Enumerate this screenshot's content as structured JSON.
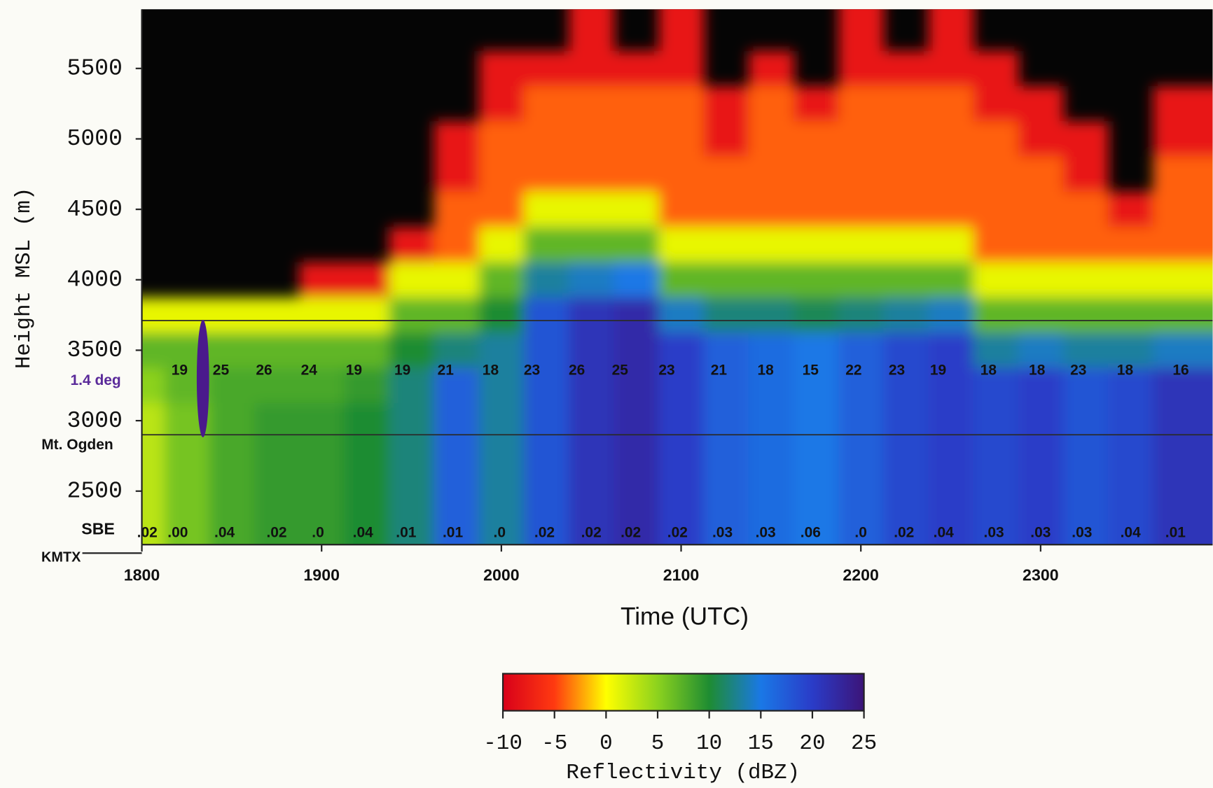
{
  "chart_data": {
    "type": "heatmap",
    "xlabel": "Time (UTC)",
    "ylabel": "Height MSL (m)",
    "x": [
      18,
      18.25,
      18.5,
      18.75,
      19,
      19.25,
      19.5,
      19.75,
      20,
      20.25,
      20.5,
      20.75,
      21,
      21.25,
      21.5,
      21.75,
      22,
      22.25,
      22.5,
      22.75,
      23,
      23.25,
      23.5,
      23.75
    ],
    "y": [
      5750,
      5500,
      5250,
      5000,
      4750,
      4500,
      4250,
      4000,
      3750,
      3500,
      3250,
      3000,
      2750,
      2500,
      2250
    ],
    "values": [
      [
        null,
        null,
        null,
        null,
        null,
        null,
        null,
        null,
        1,
        7,
        5,
        3,
        3,
        3,
        3
      ],
      [
        null,
        null,
        null,
        null,
        null,
        null,
        null,
        null,
        1,
        7,
        7,
        6,
        6,
        6,
        6
      ],
      [
        null,
        null,
        null,
        null,
        null,
        null,
        null,
        null,
        1,
        7,
        8,
        8,
        8,
        8,
        8
      ],
      [
        null,
        null,
        null,
        null,
        null,
        null,
        null,
        null,
        1,
        7,
        8,
        9,
        9,
        9,
        9
      ],
      [
        null,
        null,
        null,
        null,
        null,
        null,
        null,
        -8,
        1,
        7,
        8,
        9,
        9,
        9,
        9
      ],
      [
        null,
        null,
        null,
        null,
        null,
        null,
        null,
        -8,
        1,
        7,
        9,
        10,
        10,
        10,
        10
      ],
      [
        null,
        null,
        null,
        null,
        null,
        null,
        -8,
        1,
        7,
        10,
        12,
        12,
        12,
        12,
        12
      ],
      [
        null,
        null,
        null,
        -8,
        -8,
        -4,
        -4,
        1,
        7,
        12,
        17,
        17,
        17,
        17,
        17
      ],
      [
        null,
        -8,
        -8,
        -4,
        -4,
        -4,
        1,
        7,
        10,
        13,
        13,
        13,
        13,
        13,
        13
      ],
      [
        null,
        -8,
        -4,
        -4,
        -4,
        1,
        7,
        13,
        18,
        18,
        18,
        18,
        18,
        18,
        18
      ],
      [
        -8,
        -8,
        -4,
        -4,
        -4,
        1,
        7,
        14,
        21,
        21,
        21,
        21,
        21,
        21,
        21
      ],
      [
        null,
        -8,
        -4,
        -4,
        -4,
        1,
        7,
        15,
        22,
        22,
        22,
        22,
        22,
        22,
        22
      ],
      [
        -8,
        -8,
        -4,
        -4,
        -4,
        -4,
        1,
        7,
        14,
        20,
        20,
        20,
        20,
        20,
        20
      ],
      [
        null,
        null,
        -8,
        -8,
        -4,
        -4,
        1,
        7,
        12,
        17,
        17,
        17,
        17,
        17,
        17
      ],
      [
        null,
        -8,
        -4,
        -4,
        -4,
        -4,
        1,
        7,
        12,
        16,
        16,
        16,
        16,
        16,
        16
      ],
      [
        null,
        null,
        -8,
        -4,
        -4,
        -4,
        1,
        7,
        11,
        15,
        15,
        15,
        15,
        15,
        15
      ],
      [
        -8,
        -8,
        -4,
        -4,
        -4,
        -4,
        1,
        7,
        12,
        17,
        17,
        17,
        17,
        17,
        17
      ],
      [
        null,
        -8,
        -4,
        -4,
        -4,
        -4,
        1,
        7,
        13,
        19,
        19,
        19,
        19,
        19,
        19
      ],
      [
        -8,
        -8,
        -4,
        -4,
        -4,
        -4,
        1,
        7,
        14,
        20,
        20,
        20,
        20,
        20,
        20
      ],
      [
        null,
        -8,
        -8,
        -4,
        -4,
        -4,
        -4,
        1,
        7,
        13,
        19,
        19,
        19,
        19,
        19
      ],
      [
        null,
        null,
        -8,
        -8,
        -4,
        -4,
        -4,
        1,
        7,
        14,
        20,
        20,
        20,
        20,
        20
      ],
      [
        null,
        null,
        null,
        -8,
        -8,
        -4,
        -4,
        1,
        7,
        13,
        18,
        18,
        18,
        18,
        18
      ],
      [
        null,
        null,
        null,
        null,
        null,
        -8,
        -4,
        1,
        7,
        13,
        19,
        19,
        19,
        19,
        19
      ],
      [
        null,
        null,
        -8,
        -8,
        -4,
        -4,
        -4,
        1,
        7,
        14,
        21,
        21,
        21,
        21,
        21
      ]
    ],
    "xlim": [
      18,
      23.957
    ],
    "ylim": [
      2120,
      5920
    ],
    "xticks": [
      {
        "value": 18,
        "label": "1800"
      },
      {
        "value": 19,
        "label": "1900"
      },
      {
        "value": 20,
        "label": "2000"
      },
      {
        "value": 21,
        "label": "2100"
      },
      {
        "value": 22,
        "label": "2200"
      },
      {
        "value": 23,
        "label": "2300"
      }
    ],
    "yticks": [
      2500,
      3000,
      3500,
      4000,
      4500,
      5000,
      5500
    ],
    "colorbar": {
      "label": "Reflectivity (dBZ)",
      "ticks": [
        -10,
        -5,
        0,
        5,
        10,
        15,
        20,
        25
      ],
      "colors": [
        "#d8001a",
        "#ff3a10",
        "#ffff00",
        "#8cd21e",
        "#1e8c32",
        "#1a78e6",
        "#2a3cc8",
        "#3c1478"
      ]
    },
    "reference_lines": [
      3710,
      {
        "value": 2900,
        "label": "Mt. Ogden"
      }
    ],
    "annotations": [
      {
        "label": "1.4 deg",
        "x": [
          18.21,
          18.44,
          18.68,
          18.93,
          19.18,
          19.45,
          19.69,
          19.94,
          20.17,
          20.42,
          20.66,
          20.92,
          21.21,
          21.47,
          21.72,
          21.96,
          22.2,
          22.43,
          22.71,
          22.98,
          23.21,
          23.47,
          23.78
        ],
        "values": [
          19,
          25,
          26,
          24,
          19,
          19,
          21,
          18,
          23,
          26,
          25,
          23,
          21,
          18,
          15,
          22,
          23,
          19,
          18,
          18,
          23,
          18,
          16
        ]
      },
      {
        "label": "SBE",
        "x": [
          18.03,
          18.2,
          18.46,
          18.75,
          18.98,
          19.23,
          19.47,
          19.73,
          19.99,
          20.24,
          20.5,
          20.72,
          20.98,
          21.23,
          21.47,
          21.72,
          22.0,
          22.24,
          22.46,
          22.74,
          23.0,
          23.23,
          23.5,
          23.75
        ],
        "values": [
          0.02,
          0.0,
          0.04,
          0.02,
          0.0,
          0.04,
          0.01,
          0.01,
          0.0,
          0.02,
          0.02,
          0.02,
          0.02,
          0.03,
          0.03,
          0.06,
          0.0,
          0.02,
          0.04,
          0.03,
          0.03,
          0.03,
          0.04,
          0.01
        ],
        "value_labels": [
          ".02",
          ".00",
          ".04",
          ".02",
          ".0",
          ".04",
          ".01",
          ".01",
          ".0",
          ".02",
          ".02",
          ".02",
          ".02",
          ".03",
          ".03",
          ".06",
          ".0",
          ".02",
          ".04",
          ".03",
          ".03",
          ".03",
          ".04",
          ".01"
        ]
      }
    ],
    "site_label": "KMTX"
  }
}
